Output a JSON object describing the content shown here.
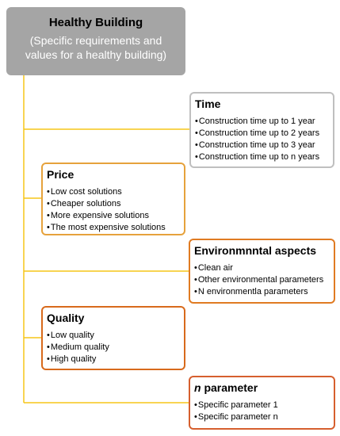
{
  "root": {
    "title": "Healthy Building",
    "subtitle_line1": "(Specific requirements and",
    "subtitle_line2": "values for a healthy building)"
  },
  "boxes": [
    {
      "title": "Time",
      "items": [
        "Construction time up to 1 year",
        "Construction time up to 2 years",
        "Construction time up to 3 year",
        "Construction time up to n years"
      ]
    },
    {
      "title": "Price",
      "items": [
        "Low cost solutions",
        "Cheaper solutions",
        "More expensive solutions",
        "The most expensive solutions"
      ]
    },
    {
      "title": "Environmnntal  aspects",
      "items": [
        "Clean air",
        "Other environmental parameters",
        "N environmentla parameters"
      ]
    },
    {
      "title": "Quality",
      "items": [
        "Low quality",
        "Medium quality",
        "High quality"
      ]
    },
    {
      "title_italic": "n",
      "title_rest": " parameter",
      "items": [
        "Specific parameter 1",
        "Specific parameter n"
      ]
    }
  ],
  "colors": {
    "connector": "#f5c518",
    "root_fill": "#a5a5a5"
  }
}
